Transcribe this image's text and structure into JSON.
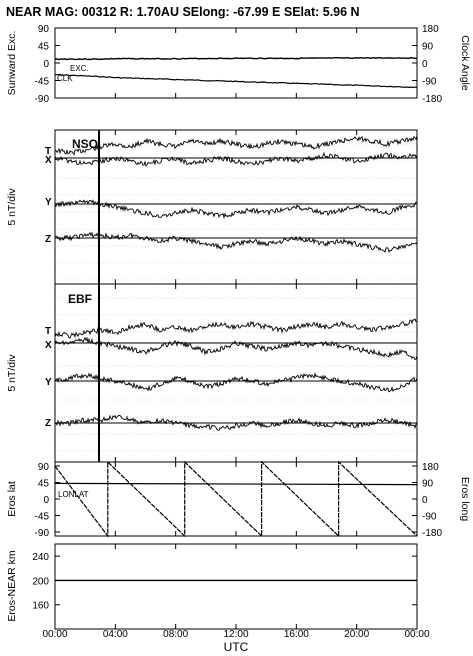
{
  "header": {
    "title": "NEAR MAG: 00312  R: 1.70AU  SElong:  -67.99 E  SElat:    5.96 N"
  },
  "chart_data": [
    {
      "type": "line",
      "panel": "sunward",
      "ylabel": "Sunward Exc.",
      "ylabel_right": "Clock Angle",
      "ylim": [
        -90,
        90
      ],
      "yticks": [
        "90",
        "45",
        "0",
        "-45",
        "-90"
      ],
      "ylim_right": [
        -180,
        180
      ],
      "yticks_right": [
        "180",
        "90",
        "0",
        "-90",
        "-180"
      ],
      "labels": [
        "EXC.",
        "CLK"
      ],
      "x": [
        0,
        3,
        4,
        8,
        12,
        16,
        20,
        24
      ],
      "series": [
        {
          "name": "EXC.",
          "values": [
            10,
            10,
            11,
            11,
            12,
            12,
            13,
            13
          ]
        },
        {
          "name": "CLK",
          "values": [
            -60,
            -70,
            -75,
            -85,
            -95,
            -105,
            -115,
            -125
          ]
        }
      ]
    },
    {
      "type": "line",
      "panel": "NSO",
      "title": "NSO",
      "ylabel": "5 nT/div",
      "trace_labels": [
        "T",
        "X",
        "Y",
        "Z"
      ],
      "x": [
        0,
        1,
        2,
        3,
        4,
        5,
        6,
        7,
        8,
        9,
        10,
        11,
        12,
        13,
        14,
        15,
        16,
        17,
        18,
        19,
        20,
        21,
        22,
        23,
        24
      ],
      "series": [
        {
          "name": "T",
          "values": [
            0,
            -1,
            0,
            1,
            2,
            1,
            3,
            2,
            1,
            3,
            2,
            3,
            2,
            1,
            2,
            3,
            2,
            1,
            2,
            3,
            4,
            3,
            2,
            3,
            4
          ]
        },
        {
          "name": "X",
          "values": [
            0,
            -1,
            -2,
            -1,
            0,
            -1,
            -2,
            -1,
            0,
            -2,
            -1,
            0,
            -1,
            -2,
            -1,
            0,
            -1,
            0,
            1,
            0,
            -1,
            0,
            1,
            0,
            1
          ]
        },
        {
          "name": "Y",
          "values": [
            0,
            0,
            1,
            0,
            -1,
            -2,
            -3,
            -4,
            -3,
            -2,
            -3,
            -4,
            -3,
            -2,
            -3,
            -2,
            -1,
            -2,
            -3,
            -2,
            -1,
            -2,
            -3,
            -1,
            0
          ]
        },
        {
          "name": "Z",
          "values": [
            0,
            0,
            1,
            1,
            0,
            1,
            0,
            -1,
            0,
            -1,
            -2,
            -3,
            -2,
            -1,
            -2,
            -1,
            0,
            -1,
            -2,
            -1,
            -2,
            -3,
            -4,
            -3,
            -2
          ]
        }
      ]
    },
    {
      "type": "line",
      "panel": "EBF",
      "title": "EBF",
      "ylabel": "5 nT/div",
      "trace_labels": [
        "T",
        "X",
        "Y",
        "Z"
      ],
      "x": [
        0,
        1,
        2,
        3,
        4,
        5,
        6,
        7,
        8,
        9,
        10,
        11,
        12,
        13,
        14,
        15,
        16,
        17,
        18,
        19,
        20,
        21,
        22,
        23,
        24
      ],
      "series": [
        {
          "name": "T",
          "values": [
            0,
            -1,
            0,
            1,
            0,
            2,
            3,
            1,
            2,
            1,
            2,
            3,
            2,
            3,
            2,
            1,
            2,
            3,
            2,
            3,
            2,
            1,
            2,
            3,
            4
          ]
        },
        {
          "name": "X",
          "values": [
            0,
            0,
            1,
            0,
            -1,
            -2,
            -3,
            -1,
            0,
            -1,
            -3,
            -2,
            0,
            -1,
            -2,
            -1,
            0,
            -1,
            0,
            -1,
            -2,
            -3,
            -4,
            -3,
            -5
          ]
        },
        {
          "name": "Y",
          "values": [
            0,
            1,
            2,
            1,
            0,
            -1,
            -3,
            -1,
            1,
            0,
            -2,
            -1,
            1,
            0,
            -1,
            0,
            1,
            2,
            1,
            0,
            -1,
            -2,
            -3,
            -2,
            1
          ]
        },
        {
          "name": "Z",
          "values": [
            0,
            0,
            1,
            1,
            2,
            1,
            0,
            1,
            0,
            -1,
            -1,
            -2,
            -1,
            0,
            -1,
            0,
            1,
            0,
            -1,
            0,
            -1,
            0,
            1,
            0,
            -1
          ]
        }
      ]
    },
    {
      "type": "line",
      "panel": "eros",
      "ylabel": "Eros lat",
      "ylabel_right": "Eros long",
      "ylim": [
        -90,
        90
      ],
      "yticks": [
        "90",
        "45",
        "0",
        "-45",
        "-90"
      ],
      "ylim_right": [
        -180,
        180
      ],
      "yticks_right": [
        "180",
        "90",
        "0",
        "-90",
        "-180"
      ],
      "labels": [
        "LON",
        "LAT"
      ],
      "lat": {
        "x": [
          0,
          24
        ],
        "values": [
          38,
          35
        ]
      },
      "lon": {
        "x": [
          0,
          3.5,
          3.5,
          8.6,
          8.6,
          13.7,
          13.7,
          18.8,
          18.8,
          24
        ],
        "values": [
          160,
          -180,
          180,
          -180,
          180,
          -180,
          180,
          -180,
          180,
          -180
        ]
      }
    },
    {
      "type": "line",
      "panel": "range",
      "ylabel": "Eros-NEAR km",
      "ylim": [
        120,
        260
      ],
      "yticks": [
        "240",
        "200",
        "160"
      ],
      "x": [
        0,
        24
      ],
      "series": [
        {
          "name": "",
          "values": [
            200,
            200
          ]
        }
      ]
    }
  ],
  "xaxis": {
    "ticks": [
      "00:00",
      "04:00",
      "08:00",
      "12:00",
      "16:00",
      "20:00",
      "00:00"
    ],
    "label": "UTC"
  }
}
